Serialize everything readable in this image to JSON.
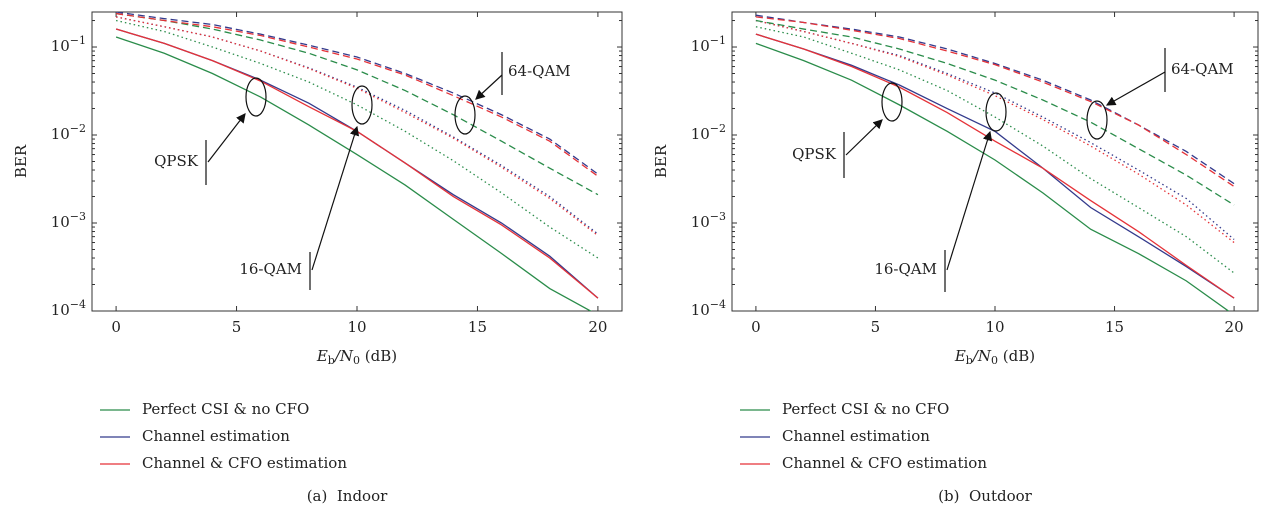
{
  "chart_data": [
    {
      "type": "line",
      "caption": "(a)  Indoor",
      "ylabel": "BER",
      "xlabel": [
        "E",
        "b",
        "/N",
        "0",
        " (dB)"
      ],
      "log_y": true,
      "x": [
        0,
        2,
        4,
        6,
        8,
        10,
        12,
        14,
        16,
        18,
        20
      ],
      "xlim": [
        -1,
        21
      ],
      "xticks": [
        0,
        5,
        10,
        15,
        20
      ],
      "ylim": [
        0.0001,
        0.25
      ],
      "yticks": [
        {
          "value": 0.0001,
          "label": "10",
          "exponent": "−4"
        },
        {
          "value": 0.001,
          "label": "10",
          "exponent": "−3"
        },
        {
          "value": 0.01,
          "label": "10",
          "exponent": "−2"
        },
        {
          "value": 0.1,
          "label": "10",
          "exponent": "−1"
        }
      ],
      "legend": [
        {
          "name": "Perfect CSI & no CFO",
          "color": "#2a8c4a"
        },
        {
          "name": "Channel estimation",
          "color": "#333a8c"
        },
        {
          "name": "Channel & CFO estimation",
          "color": "#e53238"
        }
      ],
      "groups": [
        {
          "label": "QPSK",
          "linestyle": "solid",
          "series": [
            {
              "values": [
                0.13,
                0.085,
                0.05,
                0.027,
                0.013,
                0.006,
                0.0027,
                0.0011,
                0.00045,
                0.00018,
                9e-05
              ]
            },
            {
              "values": [
                0.16,
                0.11,
                0.07,
                0.042,
                0.023,
                0.011,
                0.0048,
                0.0021,
                0.001,
                0.00042,
                0.00014
              ]
            },
            {
              "values": [
                0.16,
                0.11,
                0.07,
                0.041,
                0.021,
                0.011,
                0.0048,
                0.002,
                0.00095,
                0.0004,
                0.00014
              ]
            }
          ]
        },
        {
          "label": "16-QAM",
          "linestyle": "dotted",
          "series": [
            {
              "values": [
                0.2,
                0.15,
                0.1,
                0.065,
                0.04,
                0.022,
                0.011,
                0.0051,
                0.0022,
                0.0009,
                0.0004
              ]
            },
            {
              "values": [
                0.22,
                0.17,
                0.13,
                0.09,
                0.058,
                0.035,
                0.019,
                0.0095,
                0.0045,
                0.002,
                0.00075
              ]
            },
            {
              "values": [
                0.22,
                0.17,
                0.13,
                0.09,
                0.057,
                0.034,
                0.018,
                0.0092,
                0.0043,
                0.0019,
                0.00072
              ]
            }
          ]
        },
        {
          "label": "64-QAM",
          "linestyle": "dashed",
          "series": [
            {
              "values": [
                0.24,
                0.2,
                0.16,
                0.12,
                0.085,
                0.055,
                0.032,
                0.017,
                0.0085,
                0.0042,
                0.0021
              ]
            },
            {
              "values": [
                0.25,
                0.21,
                0.18,
                0.14,
                0.105,
                0.077,
                0.05,
                0.03,
                0.017,
                0.009,
                0.0036
              ]
            },
            {
              "values": [
                0.24,
                0.2,
                0.17,
                0.135,
                0.1,
                0.073,
                0.048,
                0.028,
                0.016,
                0.0085,
                0.0034
              ]
            }
          ]
        }
      ]
    },
    {
      "type": "line",
      "caption": "(b)  Outdoor",
      "ylabel": "BER",
      "xlabel": [
        "E",
        "b",
        "/N",
        "0",
        " (dB)"
      ],
      "log_y": true,
      "x": [
        0,
        2,
        4,
        6,
        8,
        10,
        12,
        14,
        16,
        18,
        20
      ],
      "xlim": [
        -1,
        21
      ],
      "xticks": [
        0,
        5,
        10,
        15,
        20
      ],
      "ylim": [
        0.0001,
        0.25
      ],
      "yticks": [
        {
          "value": 0.0001,
          "label": "10",
          "exponent": "−4"
        },
        {
          "value": 0.001,
          "label": "10",
          "exponent": "−3"
        },
        {
          "value": 0.01,
          "label": "10",
          "exponent": "−2"
        },
        {
          "value": 0.1,
          "label": "10",
          "exponent": "−1"
        }
      ],
      "legend": [
        {
          "name": "Perfect CSI & no CFO",
          "color": "#2a8c4a"
        },
        {
          "name": "Channel estimation",
          "color": "#333a8c"
        },
        {
          "name": "Channel & CFO estimation",
          "color": "#e53238"
        }
      ],
      "groups": [
        {
          "label": "QPSK",
          "linestyle": "solid",
          "series": [
            {
              "values": [
                0.11,
                0.07,
                0.042,
                0.022,
                0.011,
                0.0052,
                0.0022,
                0.00085,
                0.00045,
                0.00022,
                9e-05
              ]
            },
            {
              "values": [
                0.14,
                0.095,
                0.062,
                0.037,
                0.02,
                0.011,
                0.0042,
                0.0015,
                0.0007,
                0.00032,
                0.00014
              ]
            },
            {
              "values": [
                0.14,
                0.095,
                0.06,
                0.035,
                0.018,
                0.0085,
                0.0042,
                0.0018,
                0.0008,
                0.00033,
                0.00014
              ]
            }
          ]
        },
        {
          "label": "16-QAM",
          "linestyle": "dotted",
          "series": [
            {
              "values": [
                0.17,
                0.13,
                0.085,
                0.055,
                0.032,
                0.016,
                0.0075,
                0.0032,
                0.0015,
                0.0007,
                0.00027
              ]
            },
            {
              "values": [
                0.2,
                0.15,
                0.11,
                0.08,
                0.05,
                0.03,
                0.016,
                0.0082,
                0.004,
                0.0019,
                0.00065
              ]
            },
            {
              "values": [
                0.2,
                0.15,
                0.11,
                0.078,
                0.048,
                0.028,
                0.015,
                0.0075,
                0.0036,
                0.0016,
                0.0006
              ]
            }
          ]
        },
        {
          "label": "64-QAM",
          "linestyle": "dashed",
          "series": [
            {
              "values": [
                0.2,
                0.16,
                0.13,
                0.095,
                0.065,
                0.042,
                0.025,
                0.014,
                0.007,
                0.0035,
                0.0016
              ]
            },
            {
              "values": [
                0.23,
                0.19,
                0.16,
                0.13,
                0.095,
                0.065,
                0.042,
                0.025,
                0.013,
                0.0065,
                0.0028
              ]
            },
            {
              "values": [
                0.22,
                0.19,
                0.155,
                0.125,
                0.09,
                0.063,
                0.04,
                0.024,
                0.013,
                0.006,
                0.0026
              ]
            }
          ]
        }
      ]
    }
  ]
}
